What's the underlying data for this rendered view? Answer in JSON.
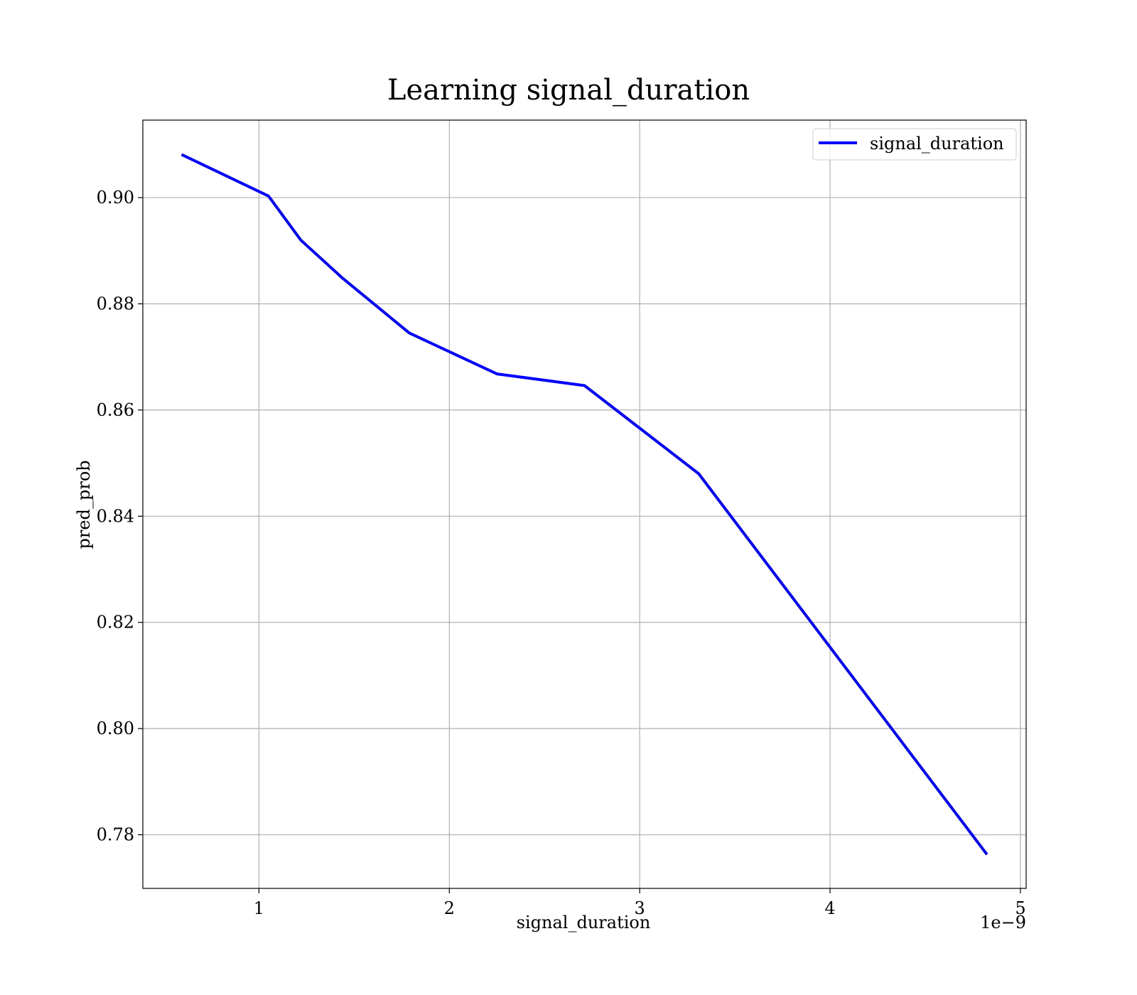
{
  "chart_data": {
    "type": "line",
    "title": "Learning signal_duration",
    "xlabel": "signal_duration",
    "ylabel": "pred_prob",
    "x_offset_text": "1e−9",
    "x_scale_factor": 1e-09,
    "xlim": [
      0.39,
      5.03
    ],
    "ylim": [
      0.7699,
      0.9146
    ],
    "x_ticks": [
      1,
      2,
      3,
      4,
      5
    ],
    "y_ticks": [
      0.78,
      0.8,
      0.82,
      0.84,
      0.86,
      0.88,
      0.9
    ],
    "grid": true,
    "legend_position": "top-right",
    "colors": {
      "line": "#0000ff",
      "grid": "#b0b0b0"
    },
    "series": [
      {
        "name": "signal_duration",
        "x": [
          0.6,
          1.05,
          1.22,
          1.44,
          1.79,
          2.25,
          2.71,
          3.31,
          4.82
        ],
        "y": [
          0.908,
          0.9003,
          0.892,
          0.8848,
          0.8745,
          0.8668,
          0.8646,
          0.848,
          0.7765
        ]
      }
    ]
  }
}
